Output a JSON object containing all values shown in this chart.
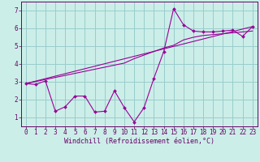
{
  "xlabel": "Windchill (Refroidissement éolien,°C)",
  "bg_color": "#cceee8",
  "grid_color": "#99cccc",
  "line_color": "#990099",
  "spine_color": "#660066",
  "xlim": [
    -0.5,
    23.5
  ],
  "ylim": [
    0.5,
    7.5
  ],
  "xticks": [
    0,
    1,
    2,
    3,
    4,
    5,
    6,
    7,
    8,
    9,
    10,
    11,
    12,
    13,
    14,
    15,
    16,
    17,
    18,
    19,
    20,
    21,
    22,
    23
  ],
  "yticks": [
    1,
    2,
    3,
    4,
    5,
    6,
    7
  ],
  "series1_x": [
    0,
    1,
    2,
    3,
    4,
    5,
    6,
    7,
    8,
    9,
    10,
    11,
    12,
    13,
    14,
    15,
    16,
    17,
    18,
    19,
    20,
    21,
    22,
    23
  ],
  "series1_y": [
    2.9,
    2.85,
    3.05,
    1.35,
    1.6,
    2.2,
    2.2,
    1.3,
    1.35,
    2.5,
    1.55,
    0.75,
    1.55,
    3.2,
    4.7,
    7.1,
    6.2,
    5.85,
    5.8,
    5.8,
    5.85,
    5.9,
    5.55,
    6.1
  ],
  "series2_x": [
    0,
    23
  ],
  "series2_y": [
    2.9,
    6.1
  ],
  "series3_x": [
    0,
    10,
    11,
    12,
    13,
    14,
    15,
    16,
    17,
    18,
    19,
    20,
    21,
    22,
    23
  ],
  "series3_y": [
    2.9,
    4.05,
    4.3,
    4.5,
    4.7,
    4.9,
    5.05,
    5.35,
    5.5,
    5.6,
    5.65,
    5.7,
    5.75,
    5.8,
    5.85
  ],
  "tick_fontsize": 5.5,
  "xlabel_fontsize": 6.0
}
